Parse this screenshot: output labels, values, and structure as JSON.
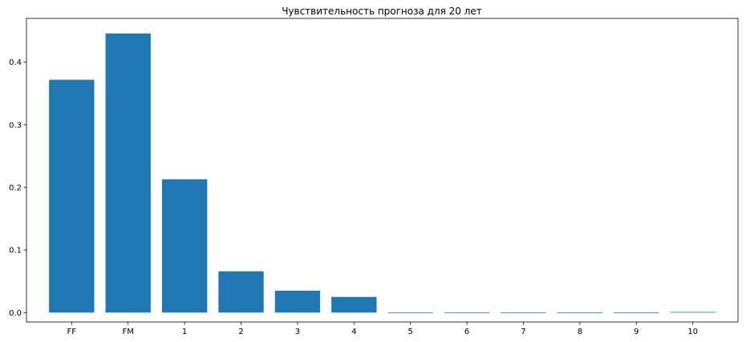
{
  "chart_data": {
    "type": "bar",
    "title": "Чувствительность прогноза для 20 лет",
    "xlabel": "",
    "ylabel": "",
    "categories": [
      "FF",
      "FM",
      "1",
      "2",
      "3",
      "4",
      "5",
      "6",
      "7",
      "8",
      "9",
      "10"
    ],
    "values": [
      0.372,
      0.446,
      0.213,
      0.066,
      0.035,
      0.025,
      0.0,
      0.0,
      0.0,
      0.0,
      0.0,
      0.001
    ],
    "ylim": [
      -0.015,
      0.47
    ],
    "yticks": [
      0.0,
      0.1,
      0.2,
      0.3,
      0.4
    ],
    "ytick_labels": [
      "0.0",
      "0.1",
      "0.2",
      "0.3",
      "0.4"
    ],
    "bar_color": "#1f77b4",
    "grid": false,
    "legend": "none"
  }
}
